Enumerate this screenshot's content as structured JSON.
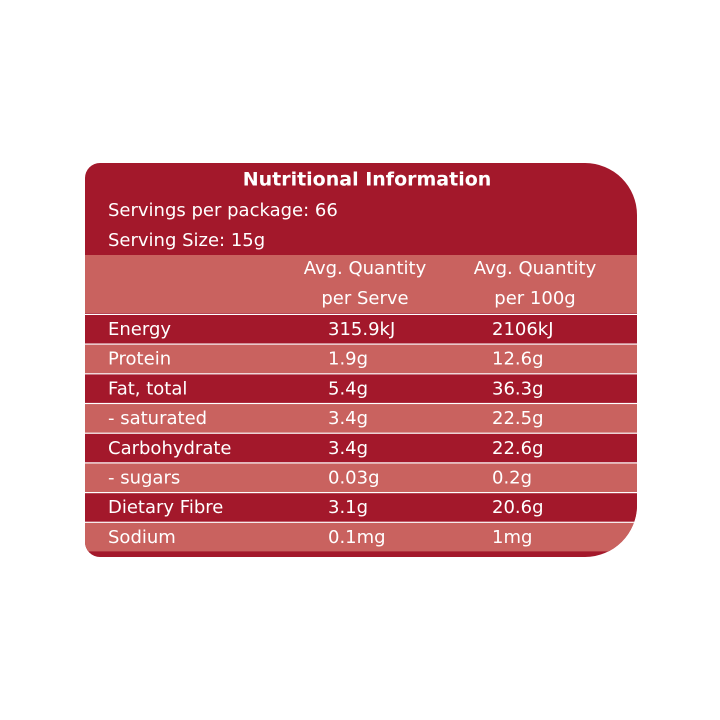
{
  "title": "Nutritional Information",
  "servings_per_package": "Servings per package: 66",
  "serving_size": "Serving Size: 15g",
  "table": {
    "header": [
      [
        "Avg. Quantity",
        "per Serve"
      ],
      [
        "Avg. Quantity",
        "per 100g"
      ]
    ],
    "rows": [
      [
        "Energy",
        "315.9kJ",
        "2106kJ"
      ],
      [
        "Protein",
        "1.9g",
        "12.6g"
      ],
      [
        "Fat, total",
        "5.4g",
        "36.3g"
      ],
      [
        "- saturated",
        "3.4g",
        "22.5g"
      ],
      [
        "Carbohydrate",
        "3.4g",
        "22.6g"
      ],
      [
        "- sugars",
        "0.03g",
        "0.2g"
      ],
      [
        "Dietary Fibre",
        "3.1g",
        "20.6g"
      ],
      [
        "Sodium",
        "0.1mg",
        "1mg"
      ]
    ]
  }
}
